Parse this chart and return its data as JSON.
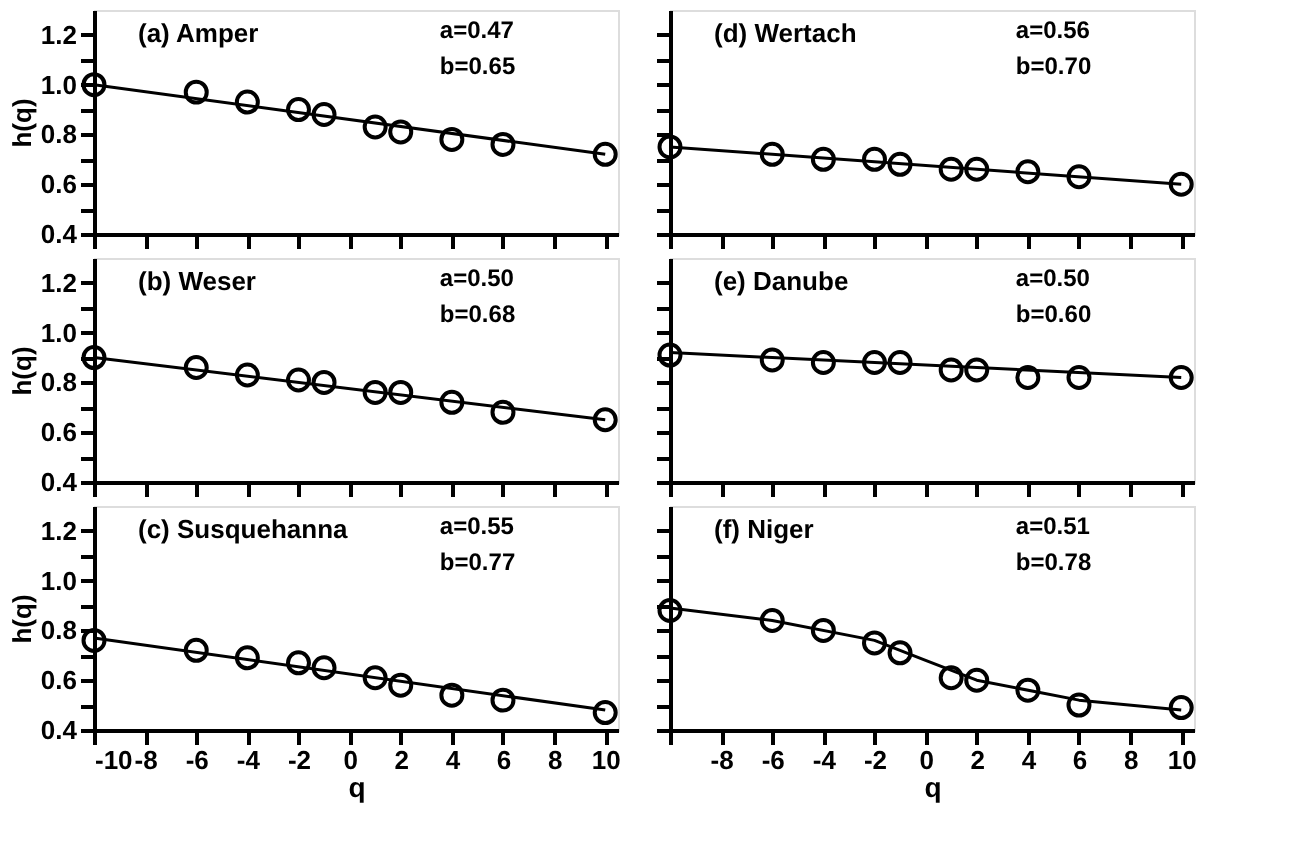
{
  "chart_data": [
    {
      "type": "scatter",
      "title": "(a) Amper",
      "annotations": [
        "a=0.47",
        "b=0.65"
      ],
      "ylabel": "h(q)",
      "tick_labels": "y",
      "grid": false,
      "xlim": [
        -10,
        10.5
      ],
      "ylim": [
        0.4,
        1.3
      ],
      "xticks": [
        {
          "value": -10,
          "label": null
        },
        {
          "value": -8,
          "label": null
        },
        {
          "value": -6,
          "label": null
        },
        {
          "value": -4,
          "label": null
        },
        {
          "value": -2,
          "label": null
        },
        {
          "value": 0,
          "label": null
        },
        {
          "value": 2,
          "label": null
        },
        {
          "value": 4,
          "label": null
        },
        {
          "value": 6,
          "label": null
        },
        {
          "value": 8,
          "label": null
        },
        {
          "value": 10,
          "label": null
        }
      ],
      "yticks": [
        0.4,
        {
          "value": 0.5,
          "label": null
        },
        0.6,
        {
          "value": 0.7,
          "label": null
        },
        0.8,
        {
          "value": 0.9,
          "label": null
        },
        {
          "value": 1,
          "label": "1.0"
        },
        {
          "value": 1.1,
          "label": null
        },
        1.2
      ],
      "x": [
        -10,
        -6,
        -4,
        -2,
        -1,
        1,
        2,
        4,
        6,
        10
      ],
      "series": [
        {
          "type": "line",
          "color": "#000000",
          "line_style": "solid",
          "x": [
            -10,
            10
          ],
          "values": [
            1.0,
            0.72
          ]
        },
        {
          "type": "scatter",
          "color": "#000000",
          "marker": "circle",
          "values": [
            1.0,
            0.97,
            0.93,
            0.9,
            0.88,
            0.83,
            0.81,
            0.78,
            0.76,
            0.72
          ]
        }
      ]
    },
    {
      "type": "scatter",
      "title": "(d) Wertach",
      "annotations": [
        "a=0.56",
        "b=0.70"
      ],
      "tick_labels": false,
      "grid": false,
      "xlim": [
        -10,
        10.5
      ],
      "ylim": [
        0.4,
        1.3
      ],
      "xticks": [
        {
          "value": -10,
          "label": null
        },
        {
          "value": -8,
          "label": null
        },
        {
          "value": -6,
          "label": null
        },
        {
          "value": -4,
          "label": null
        },
        {
          "value": -2,
          "label": null
        },
        {
          "value": 0,
          "label": null
        },
        {
          "value": 2,
          "label": null
        },
        {
          "value": 4,
          "label": null
        },
        {
          "value": 6,
          "label": null
        },
        {
          "value": 8,
          "label": null
        },
        {
          "value": 10,
          "label": null
        }
      ],
      "yticks": [
        {
          "value": 0.4,
          "label": null
        },
        {
          "value": 0.5,
          "label": null
        },
        {
          "value": 0.6,
          "label": null
        },
        {
          "value": 0.7,
          "label": null
        },
        {
          "value": 0.8,
          "label": null
        },
        {
          "value": 0.9,
          "label": null
        },
        {
          "value": 1,
          "label": null
        },
        {
          "value": 1.1,
          "label": null
        },
        {
          "value": 1.2,
          "label": null
        }
      ],
      "x": [
        -10,
        -6,
        -4,
        -2,
        -1,
        1,
        2,
        4,
        6,
        10
      ],
      "series": [
        {
          "type": "line",
          "color": "#000000",
          "line_style": "solid",
          "x": [
            -10,
            10
          ],
          "values": [
            0.75,
            0.6
          ]
        },
        {
          "type": "scatter",
          "color": "#000000",
          "marker": "circle",
          "values": [
            0.75,
            0.72,
            0.7,
            0.7,
            0.68,
            0.66,
            0.66,
            0.65,
            0.63,
            0.6
          ]
        }
      ]
    },
    {
      "type": "scatter",
      "title": "(b) Weser",
      "annotations": [
        "a=0.50",
        "b=0.68"
      ],
      "ylabel": "h(q)",
      "tick_labels": "y",
      "grid": false,
      "xlim": [
        -10,
        10.5
      ],
      "ylim": [
        0.4,
        1.3
      ],
      "xticks": [
        {
          "value": -10,
          "label": null
        },
        {
          "value": -8,
          "label": null
        },
        {
          "value": -6,
          "label": null
        },
        {
          "value": -4,
          "label": null
        },
        {
          "value": -2,
          "label": null
        },
        {
          "value": 0,
          "label": null
        },
        {
          "value": 2,
          "label": null
        },
        {
          "value": 4,
          "label": null
        },
        {
          "value": 6,
          "label": null
        },
        {
          "value": 8,
          "label": null
        },
        {
          "value": 10,
          "label": null
        }
      ],
      "yticks": [
        0.4,
        {
          "value": 0.5,
          "label": null
        },
        0.6,
        {
          "value": 0.7,
          "label": null
        },
        0.8,
        {
          "value": 0.9,
          "label": null
        },
        {
          "value": 1,
          "label": "1.0"
        },
        {
          "value": 1.1,
          "label": null
        },
        1.2
      ],
      "x": [
        -10,
        -6,
        -4,
        -2,
        -1,
        1,
        2,
        4,
        6,
        10
      ],
      "series": [
        {
          "type": "line",
          "color": "#000000",
          "line_style": "solid",
          "x": [
            -10,
            10
          ],
          "values": [
            0.9,
            0.65
          ]
        },
        {
          "type": "scatter",
          "color": "#000000",
          "marker": "circle",
          "values": [
            0.9,
            0.86,
            0.83,
            0.81,
            0.8,
            0.76,
            0.76,
            0.72,
            0.68,
            0.65
          ]
        }
      ]
    },
    {
      "type": "scatter",
      "title": "(e) Danube",
      "annotations": [
        "a=0.50",
        "b=0.60"
      ],
      "tick_labels": false,
      "grid": false,
      "xlim": [
        -10,
        10.5
      ],
      "ylim": [
        0.4,
        1.3
      ],
      "xticks": [
        {
          "value": -10,
          "label": null
        },
        {
          "value": -8,
          "label": null
        },
        {
          "value": -6,
          "label": null
        },
        {
          "value": -4,
          "label": null
        },
        {
          "value": -2,
          "label": null
        },
        {
          "value": 0,
          "label": null
        },
        {
          "value": 2,
          "label": null
        },
        {
          "value": 4,
          "label": null
        },
        {
          "value": 6,
          "label": null
        },
        {
          "value": 8,
          "label": null
        },
        {
          "value": 10,
          "label": null
        }
      ],
      "yticks": [
        {
          "value": 0.4,
          "label": null
        },
        {
          "value": 0.5,
          "label": null
        },
        {
          "value": 0.6,
          "label": null
        },
        {
          "value": 0.7,
          "label": null
        },
        {
          "value": 0.8,
          "label": null
        },
        {
          "value": 0.9,
          "label": null
        },
        {
          "value": 1,
          "label": null
        },
        {
          "value": 1.1,
          "label": null
        },
        {
          "value": 1.2,
          "label": null
        }
      ],
      "x": [
        -10,
        -6,
        -4,
        -2,
        -1,
        1,
        2,
        4,
        6,
        10
      ],
      "series": [
        {
          "type": "line",
          "color": "#000000",
          "line_style": "solid",
          "x": [
            -10,
            10
          ],
          "values": [
            0.92,
            0.82
          ]
        },
        {
          "type": "scatter",
          "color": "#000000",
          "marker": "circle",
          "values": [
            0.91,
            0.89,
            0.88,
            0.88,
            0.88,
            0.85,
            0.85,
            0.82,
            0.82,
            0.82
          ]
        }
      ]
    },
    {
      "type": "scatter",
      "title": "(c) Susquehanna",
      "annotations": [
        "a=0.55",
        "b=0.77"
      ],
      "ylabel": "h(q)",
      "xlabel": "q",
      "grid": false,
      "xlim": [
        -10,
        10.5
      ],
      "ylim": [
        0.4,
        1.3
      ],
      "xticks": [
        -10,
        -8,
        -6,
        -4,
        -2,
        0,
        2,
        4,
        6,
        8,
        10
      ],
      "yticks": [
        0.4,
        {
          "value": 0.5,
          "label": null
        },
        0.6,
        {
          "value": 0.7,
          "label": null
        },
        0.8,
        {
          "value": 0.9,
          "label": null
        },
        {
          "value": 1,
          "label": "1.0"
        },
        {
          "value": 1.1,
          "label": null
        },
        1.2
      ],
      "x": [
        -10,
        -6,
        -4,
        -2,
        -1,
        1,
        2,
        4,
        6,
        10
      ],
      "series": [
        {
          "type": "line",
          "color": "#000000",
          "line_style": "solid",
          "x": [
            -10,
            10
          ],
          "values": [
            0.77,
            0.48
          ]
        },
        {
          "type": "scatter",
          "color": "#000000",
          "marker": "circle",
          "values": [
            0.76,
            0.72,
            0.69,
            0.67,
            0.65,
            0.61,
            0.58,
            0.54,
            0.52,
            0.47
          ]
        }
      ]
    },
    {
      "type": "scatter",
      "title": "(f) Niger",
      "annotations": [
        "a=0.51",
        "b=0.78"
      ],
      "xlabel": "q",
      "tick_labels": "x",
      "grid": false,
      "xlim": [
        -10,
        10.5
      ],
      "ylim": [
        0.4,
        1.3
      ],
      "xticks": [
        {
          "value": -10,
          "label": null
        },
        -8,
        -6,
        -4,
        -2,
        0,
        2,
        4,
        6,
        8,
        10
      ],
      "yticks": [
        {
          "value": 0.4,
          "label": null
        },
        {
          "value": 0.5,
          "label": null
        },
        {
          "value": 0.6,
          "label": null
        },
        {
          "value": 0.7,
          "label": null
        },
        {
          "value": 0.8,
          "label": null
        },
        {
          "value": 0.9,
          "label": null
        },
        {
          "value": 1,
          "label": null
        },
        {
          "value": 1.1,
          "label": null
        },
        {
          "value": 1.2,
          "label": null
        }
      ],
      "x": [
        -10,
        -6,
        -4,
        -2,
        -1,
        1,
        2,
        4,
        6,
        10
      ],
      "series": [
        {
          "type": "line",
          "color": "#000000",
          "line_style": "solid",
          "x": [
            -10,
            -6,
            -2,
            0,
            2,
            6,
            10
          ],
          "values": [
            0.89,
            0.84,
            0.76,
            0.68,
            0.6,
            0.52,
            0.48
          ]
        },
        {
          "type": "scatter",
          "color": "#000000",
          "marker": "circle",
          "values": [
            0.88,
            0.84,
            0.8,
            0.75,
            0.71,
            0.61,
            0.6,
            0.56,
            0.5,
            0.49
          ]
        }
      ]
    }
  ]
}
